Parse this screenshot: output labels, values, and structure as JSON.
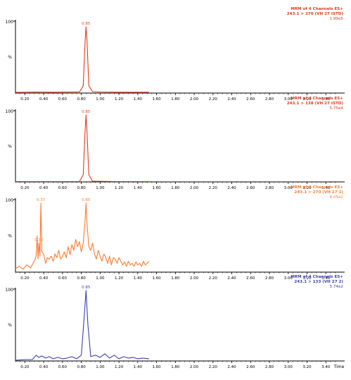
{
  "x_axis_title": "Time",
  "y_axis_top": "100",
  "y_axis_mid": "%",
  "chart_data": [
    {
      "type": "line",
      "color": "#e03a1c",
      "header": [
        "MRM of 4 Channels ES+",
        "243.1 > 270 (VH 27 ISTD)",
        "1.99e5"
      ],
      "peak_labels": [
        {
          "x": 0.85,
          "text": "0.85"
        }
      ],
      "xlim": [
        0.1,
        3.6
      ],
      "x_ticks": [
        "0.20",
        "0.40",
        "0.60",
        "0.80",
        "1.00",
        "1.20",
        "1.40",
        "1.60",
        "1.80",
        "2.00",
        "2.20",
        "2.40",
        "2.60",
        "2.80",
        "3.00",
        "3.20",
        "3.40"
      ],
      "ylim": [
        0,
        100
      ],
      "x": [
        0.1,
        0.3,
        0.5,
        0.7,
        0.78,
        0.82,
        0.84,
        0.85,
        0.86,
        0.88,
        0.92,
        1.0,
        1.2,
        1.52
      ],
      "y": [
        1,
        1.5,
        1.2,
        1.5,
        1.5,
        10,
        70,
        92,
        75,
        10,
        2,
        1.5,
        1.2,
        1.2
      ]
    },
    {
      "type": "line",
      "color": "#e03a1c",
      "header": [
        "MRM of 4 Channels ES+",
        "243.1 > 138 (VH 27 ISTD)",
        "5.75e4"
      ],
      "peak_labels": [
        {
          "x": 0.85,
          "text": "0.85"
        }
      ],
      "xlim": [
        0.1,
        3.6
      ],
      "x_ticks": [
        "0.20",
        "0.40",
        "0.60",
        "0.80",
        "1.00",
        "1.20",
        "1.40",
        "1.60",
        "1.80",
        "2.00",
        "2.20",
        "2.40",
        "2.60",
        "2.80",
        "3.00",
        "3.20",
        "3.40"
      ],
      "ylim": [
        0,
        100
      ],
      "x": [
        0.1,
        0.5,
        0.78,
        0.82,
        0.84,
        0.85,
        0.86,
        0.88,
        0.92,
        1.2,
        1.52
      ],
      "y": [
        0.5,
        0.5,
        0.5,
        10,
        70,
        94,
        72,
        10,
        1,
        0.5,
        0.5
      ]
    },
    {
      "type": "line",
      "color": "#ff7a2e",
      "header": [
        "MRM of 4 Channels ES+",
        "243.1 > 270 (VH 27 1)",
        "6.05e2"
      ],
      "peak_labels": [
        {
          "x": 0.35,
          "text": "0.35"
        },
        {
          "x": 0.37,
          "text": "0.37"
        },
        {
          "x": 0.85,
          "text": "0.85"
        }
      ],
      "xlim": [
        0.1,
        3.6
      ],
      "x_ticks": [
        "0.20",
        "0.40",
        "0.60",
        "0.80",
        "1.00",
        "1.20",
        "1.40",
        "1.60",
        "1.80",
        "2.00",
        "2.20",
        "2.40",
        "2.60",
        "2.80",
        "3.00",
        "3.20",
        "3.40"
      ],
      "ylim": [
        0,
        100
      ],
      "x": [
        0.1,
        0.14,
        0.18,
        0.22,
        0.26,
        0.3,
        0.32,
        0.33,
        0.34,
        0.35,
        0.36,
        0.37,
        0.38,
        0.4,
        0.42,
        0.44,
        0.46,
        0.48,
        0.5,
        0.52,
        0.54,
        0.56,
        0.58,
        0.6,
        0.62,
        0.64,
        0.66,
        0.68,
        0.7,
        0.72,
        0.74,
        0.76,
        0.78,
        0.8,
        0.82,
        0.84,
        0.85,
        0.86,
        0.88,
        0.9,
        0.92,
        0.94,
        0.96,
        0.98,
        1.0,
        1.02,
        1.04,
        1.06,
        1.08,
        1.1,
        1.12,
        1.14,
        1.16,
        1.18,
        1.2,
        1.22,
        1.24,
        1.26,
        1.28,
        1.3,
        1.32,
        1.34,
        1.36,
        1.38,
        1.4,
        1.42,
        1.44,
        1.46,
        1.48,
        1.5,
        1.52
      ],
      "y": [
        5,
        8,
        4,
        10,
        6,
        15,
        22,
        50,
        18,
        40,
        22,
        95,
        28,
        25,
        12,
        20,
        18,
        22,
        15,
        25,
        20,
        30,
        18,
        22,
        28,
        20,
        35,
        24,
        38,
        30,
        45,
        35,
        42,
        28,
        40,
        70,
        95,
        68,
        35,
        30,
        40,
        25,
        18,
        30,
        22,
        15,
        25,
        20,
        12,
        22,
        10,
        20,
        18,
        12,
        20,
        15,
        10,
        14,
        8,
        15,
        10,
        12,
        8,
        14,
        10,
        12,
        8,
        15,
        10,
        12,
        15
      ]
    },
    {
      "type": "line",
      "color": "#3b3fb0",
      "header": [
        "MRM of 4 Channels ES+",
        "243.1 > 133 (VH 27 2)",
        "5.74e2"
      ],
      "peak_labels": [
        {
          "x": 0.85,
          "text": "0.85"
        }
      ],
      "xlim": [
        0.1,
        3.6
      ],
      "x_ticks": [
        "0.20",
        "0.40",
        "0.60",
        "0.80",
        "1.00",
        "1.20",
        "1.40",
        "1.60",
        "1.80",
        "2.00",
        "2.20",
        "2.40",
        "2.60",
        "2.80",
        "3.00",
        "3.20",
        "3.40"
      ],
      "ylim": [
        0,
        100
      ],
      "x": [
        0.1,
        0.2,
        0.28,
        0.32,
        0.35,
        0.38,
        0.42,
        0.46,
        0.5,
        0.55,
        0.6,
        0.65,
        0.7,
        0.75,
        0.8,
        0.83,
        0.85,
        0.87,
        0.9,
        0.95,
        1.0,
        1.05,
        1.1,
        1.15,
        1.2,
        1.25,
        1.3,
        1.35,
        1.4,
        1.45,
        1.52
      ],
      "y": [
        1,
        2,
        2,
        8,
        5,
        7,
        4,
        6,
        3,
        5,
        3,
        4,
        6,
        3,
        8,
        60,
        98,
        50,
        6,
        8,
        5,
        10,
        4,
        8,
        3,
        6,
        4,
        5,
        3,
        4,
        3
      ]
    }
  ]
}
